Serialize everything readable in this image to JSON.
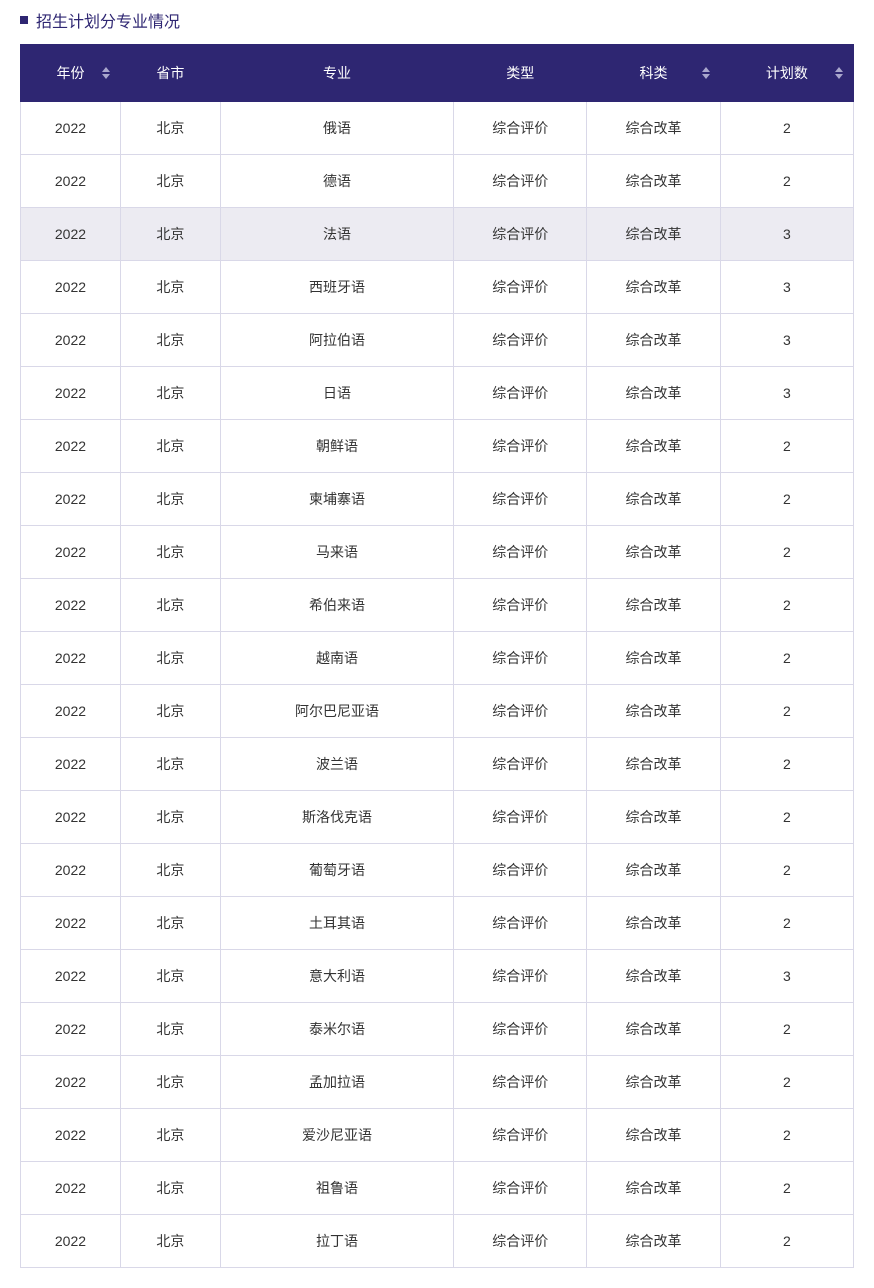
{
  "section_title": "招生计划分专业情况",
  "header_bg_color": "#2e2672",
  "header_text_color": "#ffffff",
  "cell_border_color": "#d9d8e8",
  "highlight_bg_color": "#ecebf2",
  "bullet_color": "#2e2672",
  "columns": [
    {
      "key": "year",
      "label": "年份",
      "sortable": true,
      "width": "12%"
    },
    {
      "key": "prov",
      "label": "省市",
      "sortable": false,
      "width": "12%"
    },
    {
      "key": "major",
      "label": "专业",
      "sortable": false,
      "width": "28%"
    },
    {
      "key": "type",
      "label": "类型",
      "sortable": false,
      "width": "16%"
    },
    {
      "key": "subj",
      "label": "科类",
      "sortable": true,
      "width": "16%"
    },
    {
      "key": "count",
      "label": "计划数",
      "sortable": true,
      "width": "16%"
    }
  ],
  "rows": [
    {
      "year": "2022",
      "prov": "北京",
      "major": "俄语",
      "type": "综合评价",
      "subj": "综合改革",
      "count": "2",
      "highlight": false
    },
    {
      "year": "2022",
      "prov": "北京",
      "major": "德语",
      "type": "综合评价",
      "subj": "综合改革",
      "count": "2",
      "highlight": false
    },
    {
      "year": "2022",
      "prov": "北京",
      "major": "法语",
      "type": "综合评价",
      "subj": "综合改革",
      "count": "3",
      "highlight": true
    },
    {
      "year": "2022",
      "prov": "北京",
      "major": "西班牙语",
      "type": "综合评价",
      "subj": "综合改革",
      "count": "3",
      "highlight": false
    },
    {
      "year": "2022",
      "prov": "北京",
      "major": "阿拉伯语",
      "type": "综合评价",
      "subj": "综合改革",
      "count": "3",
      "highlight": false
    },
    {
      "year": "2022",
      "prov": "北京",
      "major": "日语",
      "type": "综合评价",
      "subj": "综合改革",
      "count": "3",
      "highlight": false
    },
    {
      "year": "2022",
      "prov": "北京",
      "major": "朝鲜语",
      "type": "综合评价",
      "subj": "综合改革",
      "count": "2",
      "highlight": false
    },
    {
      "year": "2022",
      "prov": "北京",
      "major": "柬埔寨语",
      "type": "综合评价",
      "subj": "综合改革",
      "count": "2",
      "highlight": false
    },
    {
      "year": "2022",
      "prov": "北京",
      "major": "马来语",
      "type": "综合评价",
      "subj": "综合改革",
      "count": "2",
      "highlight": false
    },
    {
      "year": "2022",
      "prov": "北京",
      "major": "希伯来语",
      "type": "综合评价",
      "subj": "综合改革",
      "count": "2",
      "highlight": false
    },
    {
      "year": "2022",
      "prov": "北京",
      "major": "越南语",
      "type": "综合评价",
      "subj": "综合改革",
      "count": "2",
      "highlight": false
    },
    {
      "year": "2022",
      "prov": "北京",
      "major": "阿尔巴尼亚语",
      "type": "综合评价",
      "subj": "综合改革",
      "count": "2",
      "highlight": false
    },
    {
      "year": "2022",
      "prov": "北京",
      "major": "波兰语",
      "type": "综合评价",
      "subj": "综合改革",
      "count": "2",
      "highlight": false
    },
    {
      "year": "2022",
      "prov": "北京",
      "major": "斯洛伐克语",
      "type": "综合评价",
      "subj": "综合改革",
      "count": "2",
      "highlight": false
    },
    {
      "year": "2022",
      "prov": "北京",
      "major": "葡萄牙语",
      "type": "综合评价",
      "subj": "综合改革",
      "count": "2",
      "highlight": false
    },
    {
      "year": "2022",
      "prov": "北京",
      "major": "土耳其语",
      "type": "综合评价",
      "subj": "综合改革",
      "count": "2",
      "highlight": false
    },
    {
      "year": "2022",
      "prov": "北京",
      "major": "意大利语",
      "type": "综合评价",
      "subj": "综合改革",
      "count": "3",
      "highlight": false
    },
    {
      "year": "2022",
      "prov": "北京",
      "major": "泰米尔语",
      "type": "综合评价",
      "subj": "综合改革",
      "count": "2",
      "highlight": false
    },
    {
      "year": "2022",
      "prov": "北京",
      "major": "孟加拉语",
      "type": "综合评价",
      "subj": "综合改革",
      "count": "2",
      "highlight": false
    },
    {
      "year": "2022",
      "prov": "北京",
      "major": "爱沙尼亚语",
      "type": "综合评价",
      "subj": "综合改革",
      "count": "2",
      "highlight": false
    },
    {
      "year": "2022",
      "prov": "北京",
      "major": "祖鲁语",
      "type": "综合评价",
      "subj": "综合改革",
      "count": "2",
      "highlight": false
    },
    {
      "year": "2022",
      "prov": "北京",
      "major": "拉丁语",
      "type": "综合评价",
      "subj": "综合改革",
      "count": "2",
      "highlight": false
    }
  ]
}
